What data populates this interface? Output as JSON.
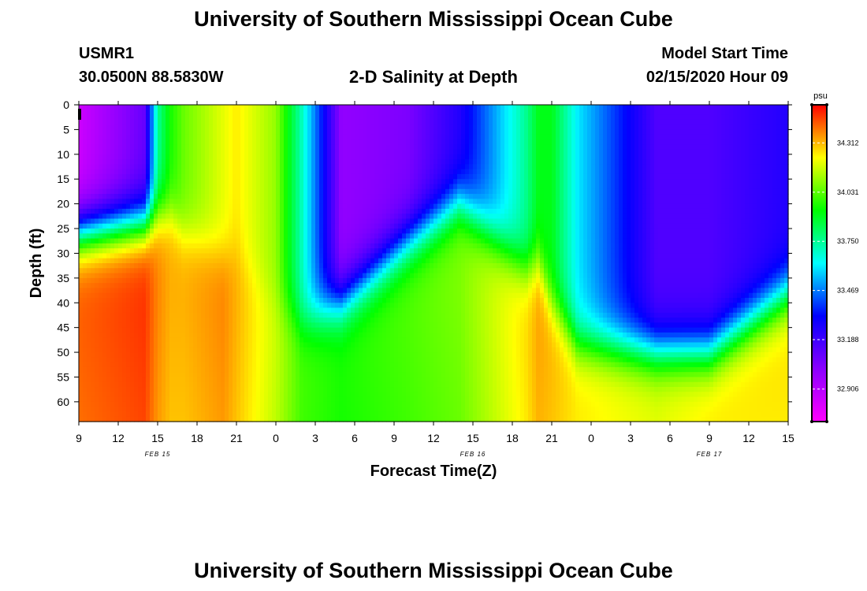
{
  "header": {
    "title": "University of Southern Mississippi Ocean Cube",
    "station_id": "USMR1",
    "coordinates": "30.0500N 88.5830W",
    "plot_title": "2-D Salinity at Depth",
    "model_start_label": "Model Start Time",
    "model_start_value": "02/15/2020 Hour 09"
  },
  "footer": {
    "title": "University of Southern Mississippi Ocean Cube"
  },
  "chart_data": {
    "type": "heatmap",
    "title": "2-D Salinity at Depth",
    "xlabel": "Forecast Time(Z)",
    "ylabel": "Depth (ft)",
    "x_ticks": [
      "9",
      "12",
      "15",
      "18",
      "21",
      "0",
      "3",
      "6",
      "9",
      "12",
      "15",
      "18",
      "21",
      "0",
      "3",
      "6",
      "9",
      "12",
      "15"
    ],
    "date_labels": [
      {
        "label": "FEB 15",
        "tick_index": 2
      },
      {
        "label": "FEB 16",
        "tick_index": 10
      },
      {
        "label": "FEB 17",
        "tick_index": 16
      }
    ],
    "x_range_hours": [
      0,
      54
    ],
    "y_ticks": [
      0,
      5,
      10,
      15,
      20,
      25,
      30,
      35,
      40,
      45,
      50,
      55,
      60
    ],
    "ylim": [
      0,
      64
    ],
    "y_inverted": true,
    "colorbar": {
      "unit": "psu",
      "ticks": [
        "34.312",
        "34.031",
        "33.750",
        "33.469",
        "33.188",
        "32.906"
      ],
      "vmin": 32.72,
      "vmax": 34.53,
      "colors": [
        "#ff00ff",
        "#8a00ff",
        "#0000ff",
        "#00ffff",
        "#00ff00",
        "#ffff00",
        "#ff0000"
      ]
    },
    "profiles_hour": [
      0,
      5,
      6,
      7,
      8,
      11,
      12,
      15,
      17,
      20,
      25,
      29,
      34,
      35,
      36,
      38,
      44,
      48,
      54
    ],
    "profiles": [
      {
        "hour": 0,
        "surface_psu": 32.85,
        "interface_ft": 26,
        "bottom_psu": 34.4
      },
      {
        "hour": 5,
        "surface_psu": 33.1,
        "interface_ft": 24,
        "bottom_psu": 34.45
      },
      {
        "hour": 6,
        "surface_psu": 33.75,
        "interface_ft": 22,
        "bottom_psu": 34.35
      },
      {
        "hour": 7,
        "surface_psu": 33.95,
        "interface_ft": 22,
        "bottom_psu": 34.3
      },
      {
        "hour": 8,
        "surface_psu": 34.05,
        "interface_ft": 26,
        "bottom_psu": 34.3
      },
      {
        "hour": 11,
        "surface_psu": 34.2,
        "interface_ft": 30,
        "bottom_psu": 34.35
      },
      {
        "hour": 12,
        "surface_psu": 34.25,
        "interface_ft": 30,
        "bottom_psu": 34.3
      },
      {
        "hour": 15,
        "surface_psu": 34.1,
        "interface_ft": 40,
        "bottom_psu": 34.15
      },
      {
        "hour": 17,
        "surface_psu": 33.7,
        "interface_ft": 44,
        "bottom_psu": 34.0
      },
      {
        "hour": 20,
        "surface_psu": 33.0,
        "interface_ft": 40,
        "bottom_psu": 33.95
      },
      {
        "hour": 25,
        "surface_psu": 33.05,
        "interface_ft": 28,
        "bottom_psu": 34.0
      },
      {
        "hour": 29,
        "surface_psu": 33.25,
        "interface_ft": 20,
        "bottom_psu": 34.05
      },
      {
        "hour": 34,
        "surface_psu": 33.75,
        "interface_ft": 33,
        "bottom_psu": 34.25
      },
      {
        "hour": 35,
        "surface_psu": 33.9,
        "interface_ft": 32,
        "bottom_psu": 34.32
      },
      {
        "hour": 36,
        "surface_psu": 33.9,
        "interface_ft": 40,
        "bottom_psu": 34.3
      },
      {
        "hour": 38,
        "surface_psu": 33.6,
        "interface_ft": 48,
        "bottom_psu": 34.25
      },
      {
        "hour": 44,
        "surface_psu": 33.15,
        "interface_ft": 50,
        "bottom_psu": 34.2
      },
      {
        "hour": 48,
        "surface_psu": 33.15,
        "interface_ft": 50,
        "bottom_psu": 34.25
      },
      {
        "hour": 54,
        "surface_psu": 33.25,
        "interface_ft": 38,
        "bottom_psu": 34.25
      }
    ]
  }
}
